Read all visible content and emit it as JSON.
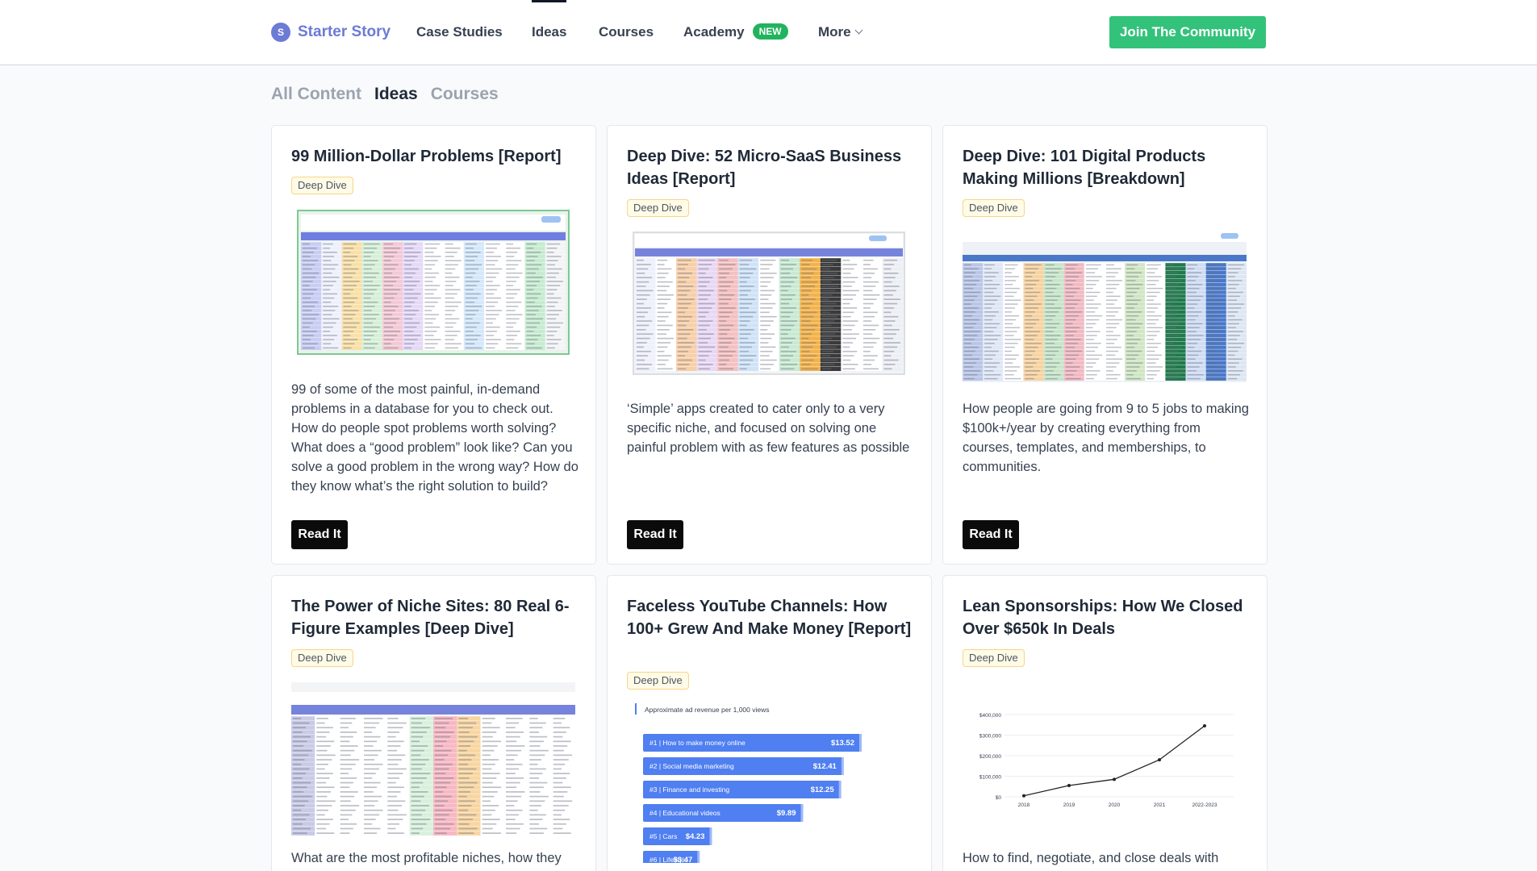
{
  "nav": {
    "brand_initial": "S",
    "brand_name": "Starter Story",
    "links": [
      "Case Studies",
      "Ideas",
      "Courses",
      "Academy",
      "More"
    ],
    "active_link": "Ideas",
    "academy_badge": "NEW",
    "join_label": "Join The Community"
  },
  "filters": [
    "All Content",
    "Ideas",
    "Courses"
  ],
  "active_filter": "Ideas",
  "cards": [
    {
      "title": "99 Million-Dollar Problems [Report]",
      "tag": "Deep Dive",
      "description": "99 of some of the most painful, in-demand problems in a database for you to check out. How do people spot problems worth solving? What does a “good problem” look like? Can you solve a good problem in the wrong way? How do they know what’s the right solution to build?",
      "button": "Read It",
      "thumbnail": "spreadsheet-screenshot"
    },
    {
      "title": "Deep Dive: 52 Micro-SaaS Business Ideas [Report]",
      "tag": "Deep Dive",
      "description": "‘Simple’ apps created to cater only to a very specific niche, and focused on solving one painful problem with as few features as possible",
      "button": "Read It",
      "thumbnail": "spreadsheet-screenshot"
    },
    {
      "title": "Deep Dive: 101 Digital Products Making Millions [Breakdown]",
      "tag": "Deep Dive",
      "description": "How people are going from 9 to 5 jobs to making $100k+/year by creating everything from courses, templates, and memberships, to communities.",
      "button": "Read It",
      "thumbnail": "spreadsheet-screenshot"
    },
    {
      "title": "The Power of Niche Sites: 80 Real 6-Figure Examples [Deep Dive]",
      "tag": "Deep Dive",
      "description": "What are the most profitable niches, how they",
      "thumbnail": "spreadsheet-screenshot"
    },
    {
      "title": "Faceless YouTube Channels: How 100+ Grew And Make Money [Report]",
      "tag": "Deep Dive",
      "thumbnail": "bar-chart",
      "chart": {
        "title": "Approximate ad revenue per 1,000 views",
        "bars": [
          {
            "rank": "#1",
            "label": "How to make money online",
            "value": "$13.52",
            "amount": 13.52
          },
          {
            "rank": "#2",
            "label": "Social media marketing",
            "value": "$12.41",
            "amount": 12.41
          },
          {
            "rank": "#3",
            "label": "Finance and investing",
            "value": "$12.25",
            "amount": 12.25
          },
          {
            "rank": "#4",
            "label": "Educational videos",
            "value": "$9.89",
            "amount": 9.89
          },
          {
            "rank": "#5",
            "label": "Cars",
            "value": "$4.23",
            "amount": 4.23
          },
          {
            "rank": "#6",
            "label": "Lifestyle",
            "value": "$3.47",
            "amount": 3.47
          }
        ]
      }
    },
    {
      "title": "Lean Sponsorships: How We Closed Over $650k In Deals",
      "tag": "Deep Dive",
      "description": "How to find, negotiate, and close deals with",
      "thumbnail": "line-chart",
      "chart": {
        "y_ticks": [
          "$400,000",
          "$300,000",
          "$200,000",
          "$100,000",
          "$0"
        ],
        "x_ticks": [
          "2018",
          "2019",
          "2020",
          "2021",
          "2022-2023"
        ],
        "values": [
          5000,
          55000,
          85000,
          180000,
          345000
        ],
        "ymax": 400000
      }
    }
  ],
  "colors": {
    "brand": "#6b7bd6",
    "join": "#33c27a",
    "badge_new": "#22b35f",
    "chart_bar": "#4f7ff0"
  }
}
